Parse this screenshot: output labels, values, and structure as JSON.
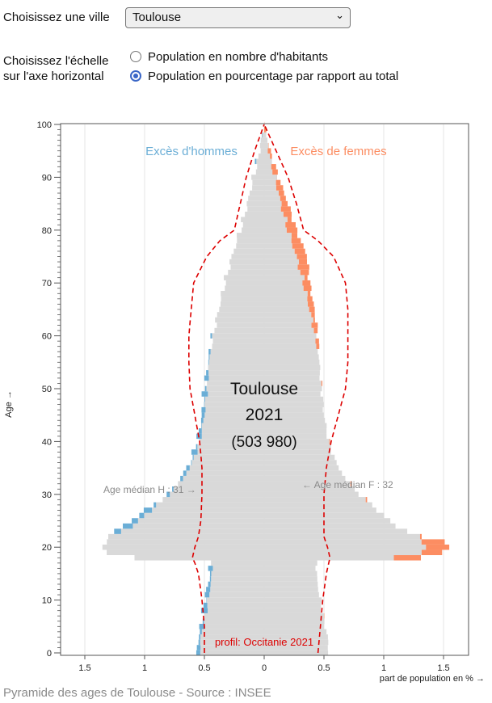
{
  "controls": {
    "city_label": "Choisissez une ville",
    "city_value": "Toulouse",
    "scale_label_line1": "Choisissez l'échelle",
    "scale_label_line2": "sur l'axe horizontal",
    "option_count": "Population en nombre d'habitants",
    "option_percent": "Population en pourcentage par rapport au total",
    "selected_option": "Population en pourcentage par rapport au total"
  },
  "chart_data": {
    "type": "population-pyramid",
    "xlabel": "part de population en %  →",
    "ylabel": "Age →",
    "xlim": [
      -1.5,
      1.5
    ],
    "ylim": [
      0,
      100
    ],
    "x_ticks": [
      -1.5,
      -1,
      -0.5,
      0,
      0.5,
      1,
      1.5
    ],
    "x_tick_labels": [
      "1.5",
      "1",
      "0.5",
      "0",
      "0.5",
      "1",
      "1.5"
    ],
    "y_ticks": [
      0,
      10,
      20,
      30,
      40,
      50,
      60,
      70,
      80,
      90,
      100
    ],
    "legend_men": "Excès d'hommes",
    "legend_women": "Excès de femmes",
    "center_title": "Toulouse",
    "center_year": "2021",
    "center_total": "(503 980)",
    "median_men_label": "Age médian H : 31 →",
    "median_women_label": "← Age médian F : 32",
    "median_men": 31,
    "median_women": 32,
    "reference_label": "profil: Occitanie 2021",
    "colors": {
      "common": "#d9d9d9",
      "excess_men": "#6baed6",
      "excess_women": "#fc8d62",
      "reference": "#dd0000",
      "legend_men": "#6baed6",
      "legend_women": "#fc8d62"
    },
    "age_keypoints": [
      0,
      3,
      6,
      10,
      14,
      17,
      18,
      19,
      20,
      21,
      22,
      23,
      24,
      26,
      28,
      30,
      33,
      36,
      40,
      45,
      50,
      55,
      60,
      65,
      70,
      75,
      80,
      85,
      90,
      95,
      100
    ],
    "men_keypoints": [
      0.56,
      0.55,
      0.52,
      0.5,
      0.46,
      0.45,
      1.1,
      1.3,
      1.35,
      1.33,
      1.3,
      1.25,
      1.18,
      1.05,
      0.93,
      0.8,
      0.7,
      0.62,
      0.56,
      0.52,
      0.5,
      0.47,
      0.43,
      0.38,
      0.33,
      0.27,
      0.2,
      0.14,
      0.09,
      0.04,
      0.0
    ],
    "women_keypoints": [
      0.54,
      0.53,
      0.5,
      0.47,
      0.44,
      0.44,
      1.3,
      1.5,
      1.55,
      1.5,
      1.32,
      1.2,
      1.1,
      1.0,
      0.9,
      0.8,
      0.68,
      0.6,
      0.54,
      0.5,
      0.48,
      0.46,
      0.45,
      0.42,
      0.38,
      0.36,
      0.27,
      0.2,
      0.12,
      0.05,
      0.0
    ],
    "reference_ages": [
      0,
      5,
      10,
      15,
      17,
      18,
      20,
      22,
      25,
      30,
      35,
      40,
      45,
      50,
      55,
      60,
      65,
      70,
      75,
      78,
      80,
      85,
      90,
      95,
      100
    ],
    "reference_men": [
      0.5,
      0.5,
      0.52,
      0.55,
      0.58,
      0.6,
      0.58,
      0.55,
      0.53,
      0.52,
      0.52,
      0.54,
      0.58,
      0.62,
      0.63,
      0.63,
      0.61,
      0.59,
      0.48,
      0.37,
      0.25,
      0.2,
      0.15,
      0.08,
      0.0
    ],
    "reference_women": [
      0.45,
      0.47,
      0.49,
      0.52,
      0.54,
      0.55,
      0.53,
      0.5,
      0.5,
      0.5,
      0.52,
      0.56,
      0.62,
      0.68,
      0.7,
      0.7,
      0.7,
      0.68,
      0.58,
      0.45,
      0.33,
      0.27,
      0.2,
      0.1,
      0.0
    ]
  },
  "footer": {
    "caption": "Pyramide des ages de Toulouse - Source : INSEE"
  }
}
